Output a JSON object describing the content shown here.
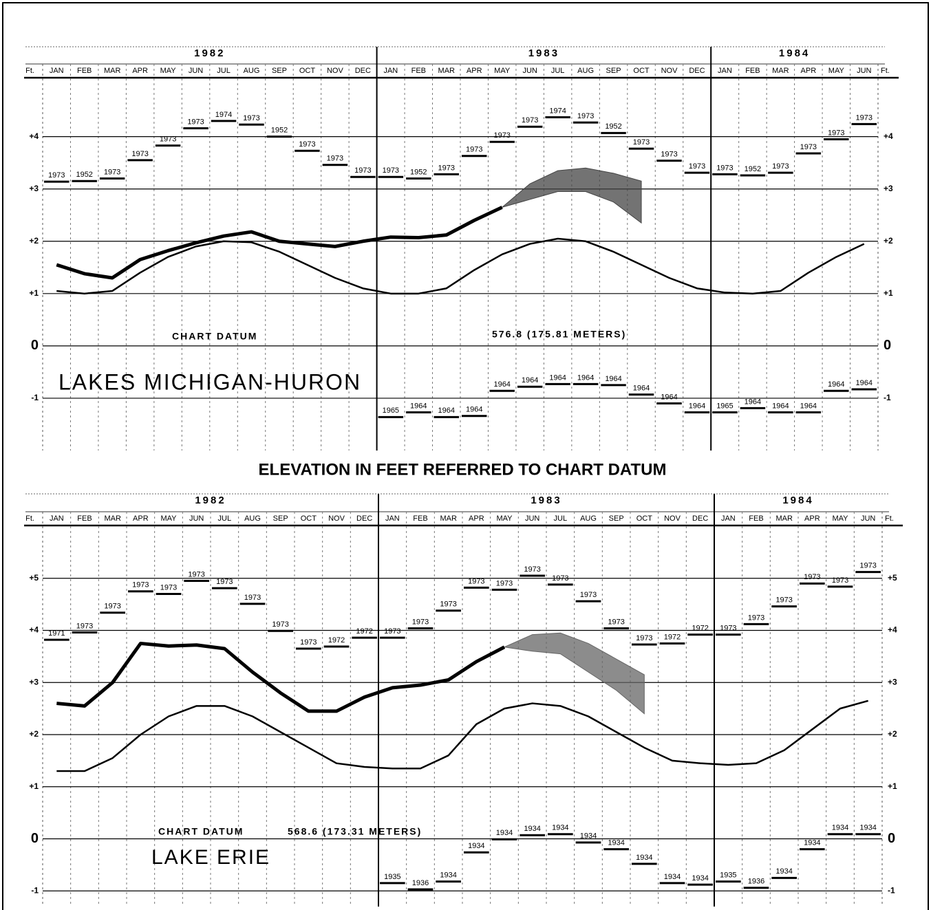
{
  "caption": "ELEVATION IN FEET REFERRED TO CHART DATUM",
  "chart_data": [
    {
      "type": "line",
      "title": "LAKES MICHIGAN-HURON",
      "datum_label": "CHART DATUM",
      "datum_value": "576.8 (175.81 METERS)",
      "y_unit": "Ft.",
      "years": [
        "1982",
        "1983",
        "1984"
      ],
      "categories": [
        "JAN",
        "FEB",
        "MAR",
        "APR",
        "MAY",
        "JUN",
        "JUL",
        "AUG",
        "SEP",
        "OCT",
        "NOV",
        "DEC",
        "JAN",
        "FEB",
        "MAR",
        "APR",
        "MAY",
        "JUN",
        "JUL",
        "AUG",
        "SEP",
        "OCT",
        "NOV",
        "DEC",
        "JAN",
        "FEB",
        "MAR",
        "APR",
        "MAY",
        "JUN"
      ],
      "ylim": [
        -2,
        5.1
      ],
      "yticks": [
        {
          "value": 4,
          "label": "+4"
        },
        {
          "value": 3,
          "label": "+3"
        },
        {
          "value": 2,
          "label": "+2"
        },
        {
          "value": 1,
          "label": "+1"
        },
        0,
        -1
      ],
      "grid": true,
      "record_high": {
        "values": [
          3.14,
          3.15,
          3.2,
          3.55,
          3.83,
          4.16,
          4.3,
          4.23,
          4.0,
          3.73,
          3.46,
          3.23,
          3.23,
          3.2,
          3.28,
          3.63,
          3.9,
          4.19,
          4.37,
          4.27,
          4.07,
          3.77,
          3.54,
          3.31,
          3.28,
          3.26,
          3.31,
          3.68,
          3.95,
          4.24
        ],
        "labels": [
          "1973",
          "1952",
          "1973",
          "1973",
          "1973",
          "1973",
          "1974",
          "1973",
          "1952",
          "1973",
          "1973",
          "1973",
          "1973",
          "1952",
          "1973",
          "1973",
          "1973",
          "1973",
          "1974",
          "1973",
          "1952",
          "1973",
          "1973",
          "1973",
          "1973",
          "1952",
          "1973",
          "1973",
          "1973",
          "1973"
        ]
      },
      "record_low": {
        "values": [
          null,
          null,
          null,
          null,
          null,
          null,
          null,
          null,
          null,
          null,
          null,
          null,
          -1.36,
          -1.27,
          -1.36,
          -1.34,
          -0.86,
          -0.78,
          -0.73,
          -0.73,
          -0.75,
          -0.93,
          -1.1,
          -1.27,
          -1.27,
          -1.19,
          -1.27,
          -1.27,
          -0.86,
          -0.83
        ],
        "labels": [
          null,
          null,
          null,
          null,
          null,
          null,
          null,
          null,
          null,
          null,
          null,
          null,
          "1965",
          "1964",
          "1964",
          "1964",
          "1964",
          "1964",
          "1964",
          "1964",
          "1964",
          "1964",
          "1964",
          "1964",
          "1965",
          "1964",
          "1964",
          "1964",
          "1964",
          "1964"
        ]
      },
      "actual": {
        "color": "#000000",
        "values": [
          1.55,
          1.38,
          1.3,
          1.65,
          1.82,
          1.97,
          2.1,
          2.18,
          2.0,
          1.95,
          1.9,
          2.0,
          2.08,
          2.07,
          2.12,
          2.4,
          2.65,
          null,
          null,
          null,
          null,
          null,
          null,
          null,
          null,
          null,
          null,
          null,
          null,
          null
        ]
      },
      "average": {
        "color": "#000000",
        "values": [
          1.05,
          1.0,
          1.05,
          1.4,
          1.7,
          1.9,
          2.0,
          1.98,
          1.8,
          1.55,
          1.3,
          1.1,
          1.0,
          1.0,
          1.1,
          1.45,
          1.75,
          1.95,
          2.05,
          2.0,
          1.8,
          1.55,
          1.3,
          1.1,
          1.02,
          1.0,
          1.05,
          1.4,
          1.7,
          1.95
        ]
      },
      "forecast": {
        "color": "#444444",
        "upper": [
          null,
          null,
          null,
          null,
          null,
          null,
          null,
          null,
          null,
          null,
          null,
          null,
          null,
          null,
          null,
          null,
          2.65,
          3.1,
          3.35,
          3.4,
          3.3,
          3.15,
          null,
          null,
          null,
          null,
          null,
          null,
          null,
          null
        ],
        "lower": [
          null,
          null,
          null,
          null,
          null,
          null,
          null,
          null,
          null,
          null,
          null,
          null,
          null,
          null,
          null,
          null,
          2.65,
          2.8,
          2.95,
          2.95,
          2.75,
          2.35,
          null,
          null,
          null,
          null,
          null,
          null,
          null,
          null
        ]
      }
    },
    {
      "type": "line",
      "title": "LAKE ERIE",
      "datum_label": "CHART DATUM",
      "datum_value": "568.6 (173.31 METERS)",
      "y_unit": "Ft.",
      "years": [
        "1982",
        "1983",
        "1984"
      ],
      "categories": [
        "JAN",
        "FEB",
        "MAR",
        "APR",
        "MAY",
        "JUN",
        "JUL",
        "AUG",
        "SEP",
        "OCT",
        "NOV",
        "DEC",
        "JAN",
        "FEB",
        "MAR",
        "APR",
        "MAY",
        "JUN",
        "JUL",
        "AUG",
        "SEP",
        "OCT",
        "NOV",
        "DEC",
        "JAN",
        "FEB",
        "MAR",
        "APR",
        "MAY",
        "JUN"
      ],
      "ylim": [
        -1.3,
        6
      ],
      "yticks": [
        {
          "value": 5,
          "label": "+5"
        },
        {
          "value": 4,
          "label": "+4"
        },
        {
          "value": 3,
          "label": "+3"
        },
        {
          "value": 2,
          "label": "+2"
        },
        {
          "value": 1,
          "label": "+1"
        },
        0,
        -1
      ],
      "grid": true,
      "record_high": {
        "values": [
          3.82,
          3.96,
          4.34,
          4.75,
          4.7,
          4.95,
          4.81,
          4.51,
          3.99,
          3.65,
          3.69,
          3.86,
          3.86,
          4.04,
          4.38,
          4.82,
          4.78,
          5.05,
          4.88,
          4.56,
          4.04,
          3.73,
          3.75,
          3.92,
          3.92,
          4.12,
          4.46,
          4.9,
          4.84,
          5.12
        ],
        "labels": [
          "1971",
          "1973",
          "1973",
          "1973",
          "1973",
          "1973",
          "1973",
          "1973",
          "1973",
          "1973",
          "1972",
          "1972",
          "1973",
          "1973",
          "1973",
          "1973",
          "1973",
          "1973",
          "1973",
          "1973",
          "1973",
          "1973",
          "1972",
          "1972",
          "1973",
          "1973",
          "1973",
          "1973",
          "1973",
          "1973"
        ]
      },
      "record_low": {
        "values": [
          null,
          null,
          null,
          null,
          null,
          null,
          null,
          null,
          null,
          null,
          null,
          null,
          -0.85,
          -0.97,
          -0.82,
          -0.26,
          -0.01,
          0.07,
          0.09,
          -0.07,
          -0.2,
          -0.48,
          -0.85,
          -0.88,
          -0.82,
          -0.94,
          -0.75,
          -0.2,
          0.09,
          0.09
        ],
        "labels": [
          null,
          null,
          null,
          null,
          null,
          null,
          null,
          null,
          null,
          null,
          null,
          null,
          "1935",
          "1936",
          "1934",
          "1934",
          "1934",
          "1934",
          "1934",
          "1934",
          "1934",
          "1934",
          "1934",
          "1934",
          "1935",
          "1936",
          "1934",
          "1934",
          "1934",
          "1934"
        ]
      },
      "actual": {
        "color": "#000000",
        "values": [
          2.6,
          2.55,
          3.0,
          3.75,
          3.7,
          3.72,
          3.65,
          3.2,
          2.8,
          2.45,
          2.45,
          2.72,
          2.9,
          2.95,
          3.05,
          3.4,
          3.68,
          null,
          null,
          null,
          null,
          null,
          null,
          null,
          null,
          null,
          null,
          null,
          null,
          null
        ]
      },
      "average": {
        "color": "#000000",
        "values": [
          1.3,
          1.3,
          1.55,
          2.0,
          2.35,
          2.55,
          2.55,
          2.35,
          2.05,
          1.75,
          1.45,
          1.38,
          1.35,
          1.35,
          1.6,
          2.2,
          2.5,
          2.6,
          2.55,
          2.35,
          2.05,
          1.75,
          1.5,
          1.45,
          1.42,
          1.45,
          1.7,
          2.1,
          2.5,
          2.65
        ]
      },
      "forecast": {
        "color": "#666666",
        "upper": [
          null,
          null,
          null,
          null,
          null,
          null,
          null,
          null,
          null,
          null,
          null,
          null,
          null,
          null,
          null,
          null,
          3.68,
          3.92,
          3.95,
          3.75,
          3.45,
          3.15,
          null,
          null,
          null,
          null,
          null,
          null,
          null,
          null
        ],
        "lower": [
          null,
          null,
          null,
          null,
          null,
          null,
          null,
          null,
          null,
          null,
          null,
          null,
          null,
          null,
          null,
          null,
          3.68,
          3.6,
          3.55,
          3.2,
          2.85,
          2.4,
          null,
          null,
          null,
          null,
          null,
          null,
          null,
          null
        ]
      }
    }
  ]
}
